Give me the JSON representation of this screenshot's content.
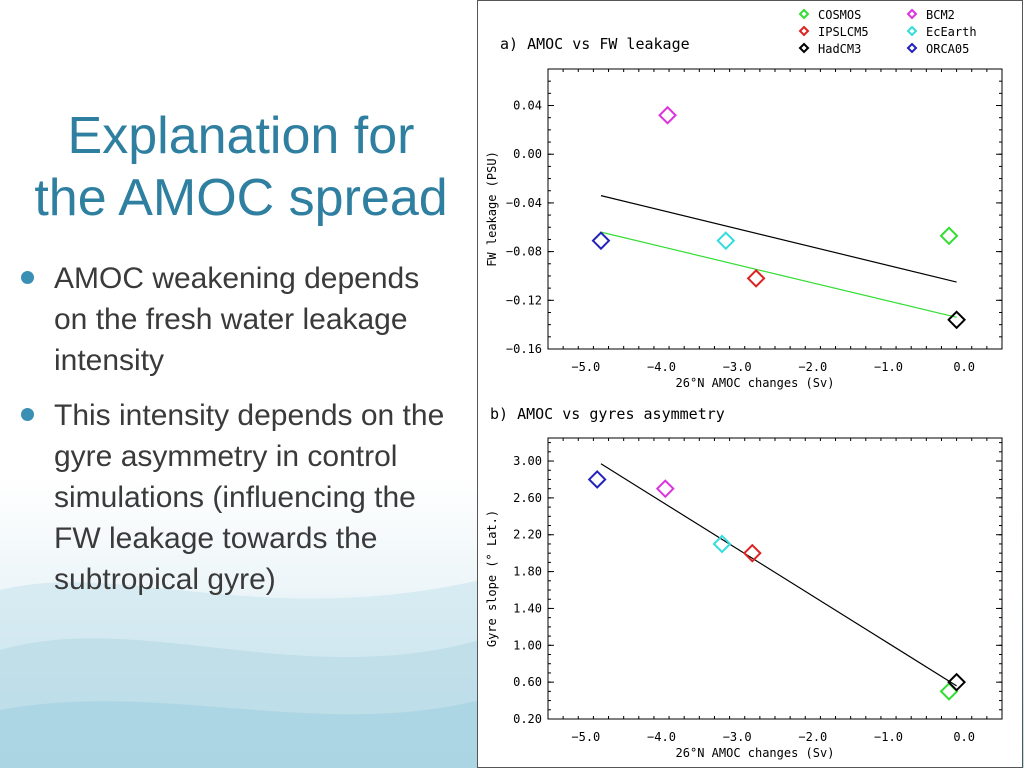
{
  "slide": {
    "title_lines": [
      "Explanation for",
      "the AMOC spread"
    ],
    "bullets": [
      "AMOC weakening depends on the fresh water leakage intensity",
      "This intensity depends on the gyre asymmetry in control simulations (influencing the FW leakage towards the subtropical gyre)"
    ],
    "accent_color": "#2e7fa0"
  },
  "legend": {
    "placement": "top-right",
    "entries": [
      {
        "name": "COSMOS",
        "color": "#33dd33"
      },
      {
        "name": "IPSLCM5",
        "color": "#dd2222"
      },
      {
        "name": "HadCM3",
        "color": "#000000"
      },
      {
        "name": "BCM2",
        "color": "#dd33dd"
      },
      {
        "name": "EcEarth",
        "color": "#33dddd"
      },
      {
        "name": "ORCA05",
        "color": "#2222bb"
      }
    ]
  },
  "chart_data": [
    {
      "type": "scatter",
      "title": "a) AMOC vs FW leakage",
      "xlabel": "26°N AMOC changes (Sv)",
      "ylabel": "FW leakage (PSU)",
      "xlim": [
        -5.5,
        0.5
      ],
      "ylim": [
        -0.16,
        0.07
      ],
      "xticks": [
        -5.0,
        -4.0,
        -3.0,
        -2.0,
        -1.0,
        0.0
      ],
      "xtick_labels": [
        "−5.0",
        "−4.0",
        "−3.0",
        "−2.0",
        "−1.0",
        "0.0"
      ],
      "yticks": [
        0.04,
        0.0,
        -0.04,
        -0.08,
        -0.12,
        -0.16
      ],
      "ytick_labels": [
        "0.04",
        "0.00",
        "−0.04",
        "−0.08",
        "−0.12",
        "−0.16"
      ],
      "grid": false,
      "series": [
        {
          "name": "COSMOS",
          "x": -0.2,
          "y": -0.067
        },
        {
          "name": "IPSLCM5",
          "x": -2.75,
          "y": -0.102
        },
        {
          "name": "HadCM3",
          "x": -0.1,
          "y": -0.136
        },
        {
          "name": "BCM2",
          "x": -3.92,
          "y": 0.032
        },
        {
          "name": "EcEarth",
          "x": -3.15,
          "y": -0.071
        },
        {
          "name": "ORCA05",
          "x": -4.8,
          "y": -0.071
        }
      ],
      "fit_lines": [
        {
          "color": "#000000",
          "x": [
            -4.8,
            -0.1
          ],
          "y": [
            -0.034,
            -0.105
          ]
        },
        {
          "color": "#33dd33",
          "x": [
            -4.8,
            -0.1
          ],
          "y": [
            -0.064,
            -0.134
          ]
        }
      ]
    },
    {
      "type": "scatter",
      "title": "b) AMOC vs gyres asymmetry",
      "xlabel": "26°N AMOC changes (Sv)",
      "ylabel": "Gyre slope (° Lat.)",
      "xlim": [
        -5.5,
        0.5
      ],
      "ylim": [
        0.2,
        3.25
      ],
      "xticks": [
        -5.0,
        -4.0,
        -3.0,
        -2.0,
        -1.0,
        0.0
      ],
      "xtick_labels": [
        "−5.0",
        "−4.0",
        "−3.0",
        "−2.0",
        "−1.0",
        "0.0"
      ],
      "yticks": [
        3.0,
        2.6,
        2.2,
        1.8,
        1.4,
        1.0,
        0.6,
        0.2
      ],
      "ytick_labels": [
        "3.00",
        "2.60",
        "2.20",
        "1.80",
        "1.40",
        "1.00",
        "0.60",
        "0.20"
      ],
      "grid": false,
      "series": [
        {
          "name": "COSMOS",
          "x": -0.2,
          "y": 0.5
        },
        {
          "name": "IPSLCM5",
          "x": -2.8,
          "y": 2.0
        },
        {
          "name": "HadCM3",
          "x": -0.1,
          "y": 0.6
        },
        {
          "name": "BCM2",
          "x": -3.95,
          "y": 2.7
        },
        {
          "name": "EcEarth",
          "x": -3.2,
          "y": 2.1
        },
        {
          "name": "ORCA05",
          "x": -4.85,
          "y": 2.8
        }
      ],
      "fit_lines": [
        {
          "color": "#000000",
          "x": [
            -4.8,
            -0.1
          ],
          "y": [
            2.97,
            0.56
          ]
        }
      ]
    }
  ]
}
